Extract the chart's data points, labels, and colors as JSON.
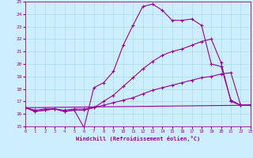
{
  "title": "",
  "xlabel": "Windchill (Refroidissement éolien,°C)",
  "xlim": [
    0,
    23
  ],
  "ylim": [
    15,
    25
  ],
  "xticks": [
    0,
    1,
    2,
    3,
    4,
    5,
    6,
    7,
    8,
    9,
    10,
    11,
    12,
    13,
    14,
    15,
    16,
    17,
    18,
    19,
    20,
    21,
    22,
    23
  ],
  "yticks": [
    15,
    16,
    17,
    18,
    19,
    20,
    21,
    22,
    23,
    24,
    25
  ],
  "bg_color": "#cceeff",
  "line_color": "#990099",
  "grid_color": "#aadddd",
  "line1_x": [
    0,
    1,
    2,
    3,
    4,
    5,
    6,
    7,
    8,
    9,
    10,
    11,
    12,
    13,
    14,
    15,
    16,
    17,
    18,
    19,
    20,
    21,
    22,
    23
  ],
  "line1_y": [
    16.5,
    16.2,
    16.3,
    16.4,
    16.2,
    16.3,
    14.9,
    18.1,
    18.5,
    19.4,
    21.5,
    23.1,
    24.6,
    24.8,
    24.3,
    23.5,
    23.5,
    23.6,
    23.1,
    20.0,
    19.8,
    17.1,
    16.7,
    16.7
  ],
  "line2_x": [
    0,
    1,
    2,
    3,
    4,
    5,
    6,
    7,
    8,
    9,
    10,
    11,
    12,
    13,
    14,
    15,
    16,
    17,
    18,
    19,
    20,
    21,
    22,
    23
  ],
  "line2_y": [
    16.5,
    16.2,
    16.3,
    16.4,
    16.2,
    16.3,
    16.3,
    16.5,
    17.0,
    17.5,
    18.2,
    18.9,
    19.6,
    20.2,
    20.7,
    21.0,
    21.2,
    21.5,
    21.8,
    22.0,
    20.1,
    17.0,
    16.7,
    16.7
  ],
  "line3_x": [
    0,
    1,
    2,
    3,
    4,
    5,
    6,
    7,
    8,
    9,
    10,
    11,
    12,
    13,
    14,
    15,
    16,
    17,
    18,
    19,
    20,
    21,
    22,
    23
  ],
  "line3_y": [
    16.5,
    16.3,
    16.4,
    16.4,
    16.3,
    16.4,
    16.4,
    16.5,
    16.7,
    16.9,
    17.1,
    17.3,
    17.6,
    17.9,
    18.1,
    18.3,
    18.5,
    18.7,
    18.9,
    19.0,
    19.2,
    19.3,
    16.7,
    16.7
  ],
  "line4_x": [
    0,
    23
  ],
  "line4_y": [
    16.5,
    16.7
  ]
}
